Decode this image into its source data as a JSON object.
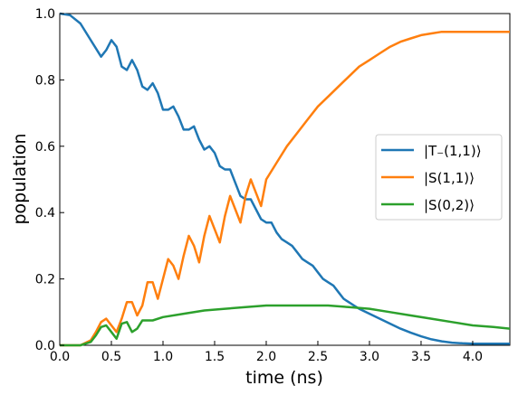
{
  "chart_data": {
    "type": "line",
    "title": "",
    "xlabel": "time (ns)",
    "ylabel": "population",
    "xlim": [
      0,
      4.36
    ],
    "ylim": [
      0,
      1.0
    ],
    "xticks": [
      "0.0",
      "0.5",
      "1.0",
      "1.5",
      "2.0",
      "2.5",
      "3.0",
      "3.5",
      "4.0"
    ],
    "yticks": [
      "0.0",
      "0.2",
      "0.4",
      "0.6",
      "0.8",
      "1.0"
    ],
    "grid": false,
    "legend_position": "right",
    "series": [
      {
        "name": "|T₋(1,1)⟩",
        "color": "#1f77b4",
        "x": [
          0.0,
          0.1,
          0.2,
          0.3,
          0.4,
          0.45,
          0.5,
          0.55,
          0.6,
          0.65,
          0.7,
          0.75,
          0.8,
          0.85,
          0.9,
          0.95,
          1.0,
          1.05,
          1.1,
          1.15,
          1.2,
          1.25,
          1.3,
          1.35,
          1.4,
          1.45,
          1.5,
          1.55,
          1.6,
          1.65,
          1.7,
          1.75,
          1.8,
          1.85,
          1.9,
          1.95,
          2.0,
          2.05,
          2.1,
          2.15,
          2.2,
          2.25,
          2.3,
          2.35,
          2.4,
          2.45,
          2.5,
          2.55,
          2.6,
          2.65,
          2.7,
          2.75,
          2.8,
          2.85,
          2.9,
          3.0,
          3.1,
          3.2,
          3.3,
          3.4,
          3.5,
          3.6,
          3.7,
          3.8,
          3.9,
          4.0,
          4.1,
          4.2,
          4.36
        ],
        "y": [
          1.0,
          0.995,
          0.97,
          0.92,
          0.87,
          0.89,
          0.92,
          0.9,
          0.84,
          0.83,
          0.86,
          0.83,
          0.78,
          0.77,
          0.79,
          0.76,
          0.71,
          0.71,
          0.72,
          0.69,
          0.65,
          0.65,
          0.66,
          0.62,
          0.59,
          0.6,
          0.58,
          0.54,
          0.53,
          0.53,
          0.49,
          0.45,
          0.44,
          0.44,
          0.41,
          0.38,
          0.37,
          0.37,
          0.34,
          0.32,
          0.31,
          0.3,
          0.28,
          0.26,
          0.25,
          0.24,
          0.22,
          0.2,
          0.19,
          0.18,
          0.16,
          0.14,
          0.13,
          0.12,
          0.11,
          0.095,
          0.08,
          0.065,
          0.05,
          0.038,
          0.027,
          0.018,
          0.012,
          0.008,
          0.006,
          0.005,
          0.005,
          0.005,
          0.005
        ]
      },
      {
        "name": "|S(1,1)⟩",
        "color": "#ff7f0e",
        "x": [
          0.0,
          0.2,
          0.3,
          0.35,
          0.4,
          0.45,
          0.5,
          0.55,
          0.6,
          0.65,
          0.7,
          0.75,
          0.8,
          0.85,
          0.9,
          0.95,
          1.0,
          1.05,
          1.1,
          1.15,
          1.2,
          1.25,
          1.3,
          1.35,
          1.4,
          1.45,
          1.5,
          1.55,
          1.6,
          1.65,
          1.7,
          1.75,
          1.8,
          1.85,
          1.9,
          1.95,
          2.0,
          2.1,
          2.2,
          2.3,
          2.4,
          2.5,
          2.6,
          2.7,
          2.8,
          2.9,
          3.0,
          3.1,
          3.2,
          3.3,
          3.4,
          3.5,
          3.6,
          3.7,
          3.8,
          3.9,
          4.0,
          4.1,
          4.2,
          4.36
        ],
        "y": [
          0.0,
          0.0,
          0.015,
          0.04,
          0.07,
          0.08,
          0.06,
          0.04,
          0.08,
          0.13,
          0.13,
          0.09,
          0.12,
          0.19,
          0.19,
          0.14,
          0.2,
          0.26,
          0.24,
          0.2,
          0.27,
          0.33,
          0.3,
          0.25,
          0.33,
          0.39,
          0.35,
          0.31,
          0.39,
          0.45,
          0.41,
          0.37,
          0.45,
          0.5,
          0.46,
          0.42,
          0.5,
          0.55,
          0.6,
          0.64,
          0.68,
          0.72,
          0.75,
          0.78,
          0.81,
          0.84,
          0.86,
          0.88,
          0.9,
          0.915,
          0.925,
          0.935,
          0.94,
          0.945,
          0.945,
          0.945,
          0.945,
          0.945,
          0.945,
          0.945
        ]
      },
      {
        "name": "|S(0,2)⟩",
        "color": "#2ca02c",
        "x": [
          0.0,
          0.2,
          0.3,
          0.35,
          0.4,
          0.45,
          0.5,
          0.55,
          0.6,
          0.65,
          0.7,
          0.75,
          0.8,
          0.9,
          1.0,
          1.2,
          1.4,
          1.6,
          1.8,
          2.0,
          2.2,
          2.4,
          2.6,
          2.8,
          3.0,
          3.2,
          3.4,
          3.6,
          3.8,
          4.0,
          4.2,
          4.36
        ],
        "y": [
          0.0,
          0.0,
          0.01,
          0.03,
          0.055,
          0.06,
          0.04,
          0.02,
          0.065,
          0.07,
          0.04,
          0.05,
          0.075,
          0.075,
          0.085,
          0.095,
          0.105,
          0.11,
          0.115,
          0.12,
          0.12,
          0.12,
          0.12,
          0.115,
          0.11,
          0.1,
          0.09,
          0.08,
          0.07,
          0.06,
          0.055,
          0.05
        ]
      }
    ]
  }
}
